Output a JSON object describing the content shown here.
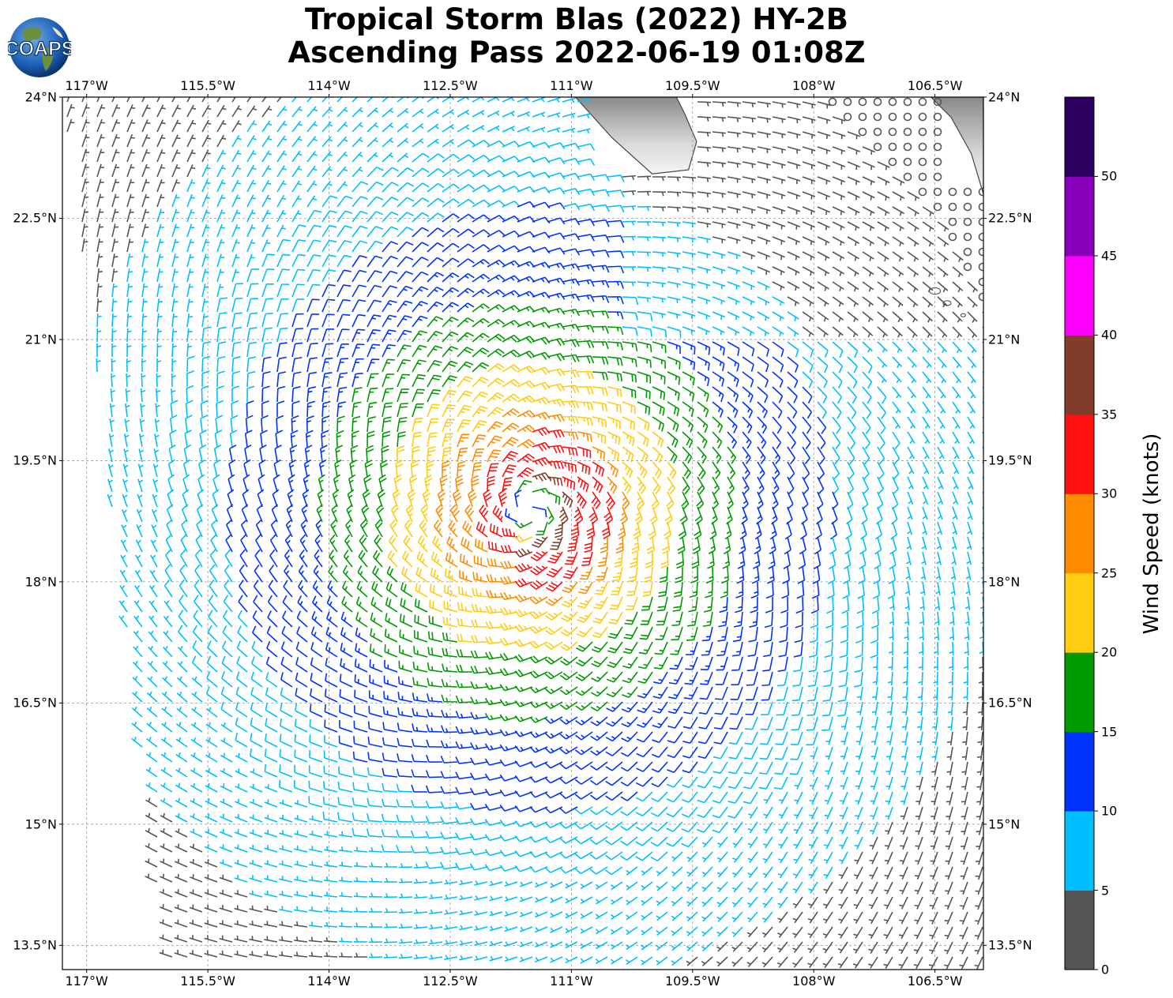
{
  "title": {
    "line1": "Tropical Storm Blas (2022) HY-2B",
    "line2": "Ascending Pass 2022-06-19 01:08Z"
  },
  "logo": {
    "text": "COAPS",
    "icon": "globe-logo-icon"
  },
  "map": {
    "lon_range": [
      -117.3,
      -105.9
    ],
    "lat_range": [
      13.2,
      24.0
    ],
    "lon_ticks": [
      {
        "value": -117,
        "label": "117°W"
      },
      {
        "value": -115.5,
        "label": "115.5°W"
      },
      {
        "value": -114,
        "label": "114°W"
      },
      {
        "value": -112.5,
        "label": "112.5°W"
      },
      {
        "value": -111,
        "label": "111°W"
      },
      {
        "value": -109.5,
        "label": "109.5°W"
      },
      {
        "value": -108,
        "label": "108°W"
      },
      {
        "value": -106.5,
        "label": "106.5°W"
      }
    ],
    "lat_ticks": [
      {
        "value": 24,
        "label": "24°N"
      },
      {
        "value": 22.5,
        "label": "22.5°N"
      },
      {
        "value": 21,
        "label": "21°N"
      },
      {
        "value": 19.5,
        "label": "19.5°N"
      },
      {
        "value": 18,
        "label": "18°N"
      },
      {
        "value": 16.5,
        "label": "16.5°N"
      },
      {
        "value": 15,
        "label": "15°N"
      },
      {
        "value": 13.5,
        "label": "13.5°N"
      }
    ],
    "gridlines": true,
    "storm_center": {
      "lon": -111.5,
      "lat": 18.9
    },
    "swath": {
      "west_edge_north_lon": -117.3,
      "west_edge_south_lon": -116.0,
      "south_edge_lat": 13.2
    },
    "land_color": "#cfcfcf",
    "coast_color": "#444444"
  },
  "colorbar": {
    "title": "Wind Speed (knots)",
    "bins": [
      {
        "min": 0,
        "max": 5,
        "color": "#555555"
      },
      {
        "min": 5,
        "max": 10,
        "color": "#00bfff"
      },
      {
        "min": 10,
        "max": 15,
        "color": "#0033ff"
      },
      {
        "min": 15,
        "max": 20,
        "color": "#009900"
      },
      {
        "min": 20,
        "max": 25,
        "color": "#ffcc11"
      },
      {
        "min": 25,
        "max": 30,
        "color": "#ff8c00"
      },
      {
        "min": 30,
        "max": 35,
        "color": "#ff0f0f"
      },
      {
        "min": 35,
        "max": 40,
        "color": "#823d2a"
      },
      {
        "min": 40,
        "max": 45,
        "color": "#ff00ff"
      },
      {
        "min": 45,
        "max": 50,
        "color": "#8800bb"
      },
      {
        "min": 50,
        "max": 55,
        "color": "#2b0060"
      }
    ],
    "tick_labels": [
      "0",
      "5",
      "10",
      "15",
      "20",
      "25",
      "30",
      "35",
      "40",
      "45",
      "50"
    ]
  }
}
